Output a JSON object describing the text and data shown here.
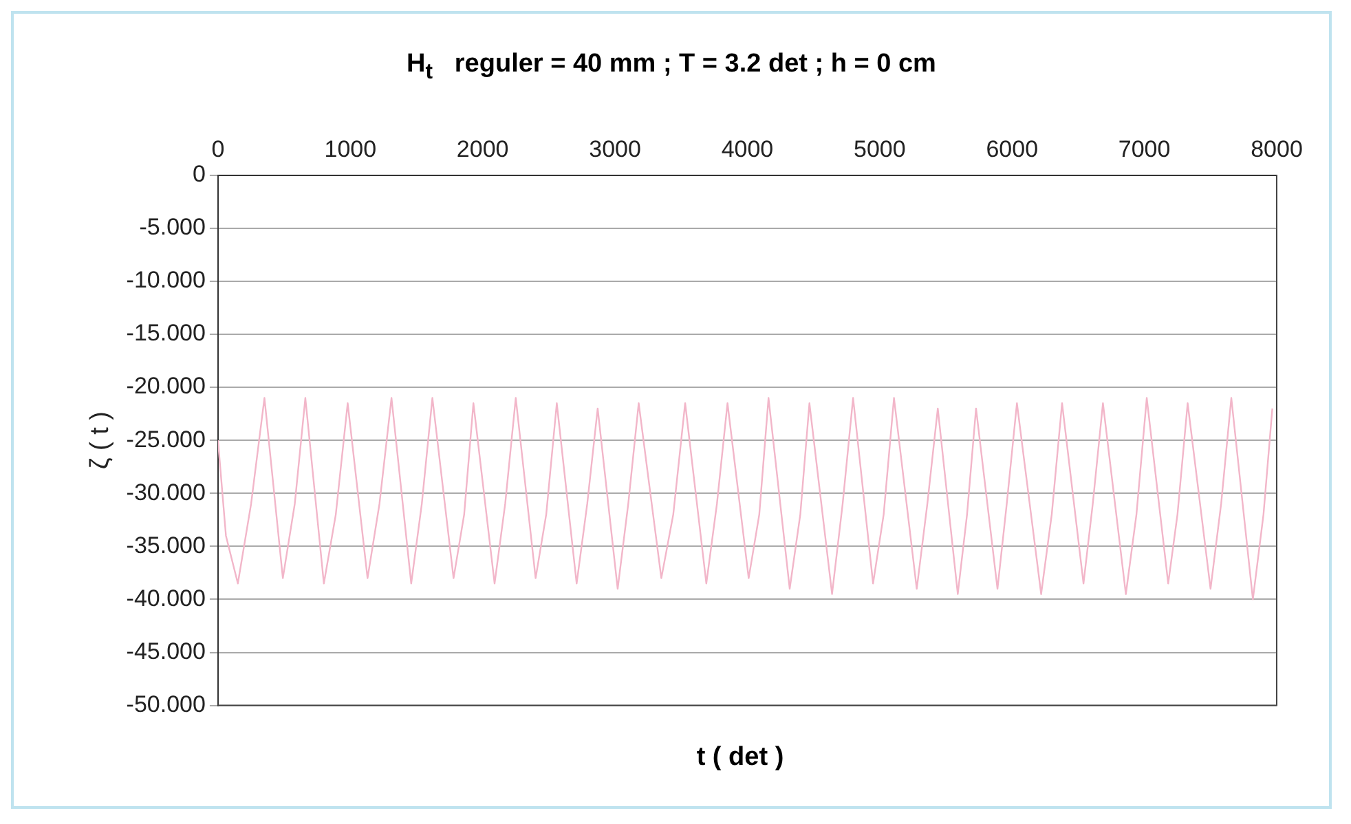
{
  "chart_data": {
    "type": "line",
    "title": "H$_{t}$   reguler = 40 mm ; T = 3.2 det ; h = 0 cm",
    "xlabel": "t ( det )",
    "ylabel": "ζ ( t )",
    "x": [
      0,
      60,
      150,
      250,
      351,
      490,
      580,
      660,
      800,
      890,
      980,
      1130,
      1220,
      1311,
      1460,
      1540,
      1620,
      1780,
      1860,
      1930,
      2090,
      2170,
      2250,
      2400,
      2480,
      2560,
      2710,
      2790,
      2869,
      3020,
      3100,
      3179,
      3350,
      3440,
      3530,
      3690,
      3770,
      3850,
      4010,
      4090,
      4160,
      4320,
      4400,
      4469,
      4640,
      4720,
      4799,
      4950,
      5030,
      5108,
      5280,
      5360,
      5439,
      5590,
      5660,
      5728,
      5890,
      5960,
      6037,
      6220,
      6300,
      6378,
      6540,
      6610,
      6687,
      6860,
      6940,
      7018,
      7180,
      7250,
      7327,
      7500,
      7580,
      7657,
      7820,
      7900,
      7967
    ],
    "series": [
      {
        "color": "#f2b6c9",
        "values": [
          -25,
          -34,
          -38.5,
          -31,
          -21,
          -38,
          -31,
          -21,
          -38.5,
          -32,
          -21.5,
          -38,
          -31,
          -21,
          -38.5,
          -31,
          -21,
          -38,
          -32,
          -21.5,
          -38.5,
          -31,
          -21,
          -38,
          -32,
          -21.5,
          -38.5,
          -31,
          -22,
          -39,
          -31,
          -21.5,
          -38,
          -32,
          -21.5,
          -38.5,
          -31,
          -21.5,
          -38,
          -32,
          -21,
          -39,
          -32,
          -21.5,
          -39.5,
          -31,
          -21,
          -38.5,
          -32,
          -21,
          -39,
          -31,
          -22,
          -39.5,
          -32,
          -22,
          -39,
          -31,
          -21.5,
          -39.5,
          -32,
          -21.5,
          -38.5,
          -31,
          -21.5,
          -39.5,
          -32,
          -21,
          -38.5,
          -32,
          -21.5,
          -39,
          -31,
          -21,
          -40,
          -32,
          -22
        ]
      }
    ],
    "xlim": [
      0,
      8000
    ],
    "xticks": [
      0,
      1000,
      2000,
      3000,
      4000,
      5000,
      6000,
      7000,
      8000
    ],
    "ylim": [
      -50,
      0
    ],
    "yticks": [
      0,
      {
        "value": -5,
        "label": "-5.000"
      },
      {
        "value": -10,
        "label": "-10.000"
      },
      {
        "value": -15,
        "label": "-15.000"
      },
      {
        "value": -20,
        "label": "-20.000"
      },
      {
        "value": -25,
        "label": "-25.000"
      },
      {
        "value": -30,
        "label": "-30.000"
      },
      {
        "value": -35,
        "label": "-35.000"
      },
      {
        "value": -40,
        "label": "-40.000"
      },
      {
        "value": -45,
        "label": "-45.000"
      },
      {
        "value": -50,
        "label": "-50.000"
      }
    ],
    "grid": "y",
    "legend": false,
    "marker": "none",
    "line_style": "solid"
  }
}
